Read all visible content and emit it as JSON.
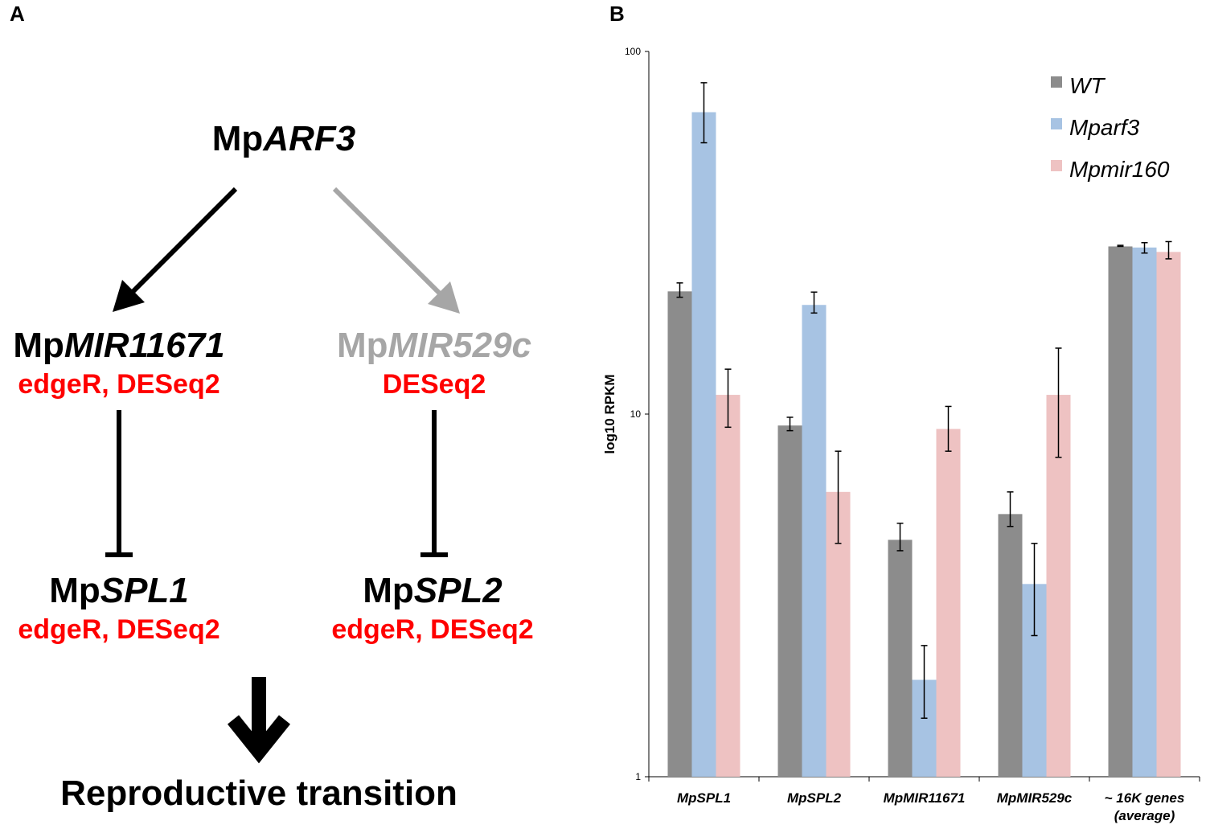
{
  "panels": {
    "a_label": "A",
    "b_label": "B"
  },
  "diagram": {
    "root": {
      "prefix": "Mp",
      "gene": "ARF3"
    },
    "left_mirna": {
      "prefix": "Mp",
      "gene": "MIR11671",
      "methods": "edgeR, DESeq2"
    },
    "right_mirna": {
      "prefix": "Mp",
      "gene": "MIR529c",
      "methods": "DESeq2"
    },
    "left_target": {
      "prefix": "Mp",
      "gene": "SPL1",
      "methods": "edgeR, DESeq2"
    },
    "right_target": {
      "prefix": "Mp",
      "gene": "SPL2",
      "methods": "edgeR, DESeq2"
    },
    "outcome": "Reproductive transition",
    "colors": {
      "strong": "#000000",
      "weak": "#a6a6a6",
      "method": "#ff0000"
    }
  },
  "chart_data": {
    "type": "bar",
    "scale": "log10",
    "title": "",
    "xlabel": "",
    "ylabel": "log10 RPKM",
    "ylim": [
      1,
      100
    ],
    "yticks": [
      1,
      10,
      100
    ],
    "categories": [
      "MpSPL1",
      "MpSPL2",
      "MpMIR11671",
      "MpMIR529c",
      "~ 16K genes (average)"
    ],
    "category_lines": [
      [
        "MpSPL1"
      ],
      [
        "MpSPL2"
      ],
      [
        "MpMIR11671"
      ],
      [
        "MpMIR529c"
      ],
      [
        "~ 16K genes",
        "(average)"
      ]
    ],
    "legend_position": "top-right",
    "series": [
      {
        "name": "WT",
        "color": "#8c8c8c",
        "values": [
          21.8,
          9.3,
          4.5,
          5.3,
          29.0
        ],
        "err_low": [
          21.0,
          9.0,
          4.2,
          4.9,
          29.0
        ],
        "err_high": [
          23.0,
          9.8,
          5.0,
          6.1,
          29.2
        ]
      },
      {
        "name": "Mparf3",
        "color": "#a7c3e3",
        "values": [
          68.0,
          20.0,
          1.85,
          3.4,
          28.8
        ],
        "err_low": [
          56.0,
          19.0,
          1.45,
          2.45,
          27.8
        ],
        "err_high": [
          82.0,
          21.7,
          2.3,
          4.4,
          29.7
        ]
      },
      {
        "name": "Mpmir160",
        "color": "#eec2c2",
        "values": [
          11.3,
          6.1,
          9.1,
          11.3,
          28.0
        ],
        "err_low": [
          9.2,
          4.4,
          7.9,
          7.6,
          26.8
        ],
        "err_high": [
          13.3,
          7.9,
          10.5,
          15.2,
          29.9
        ]
      }
    ]
  }
}
